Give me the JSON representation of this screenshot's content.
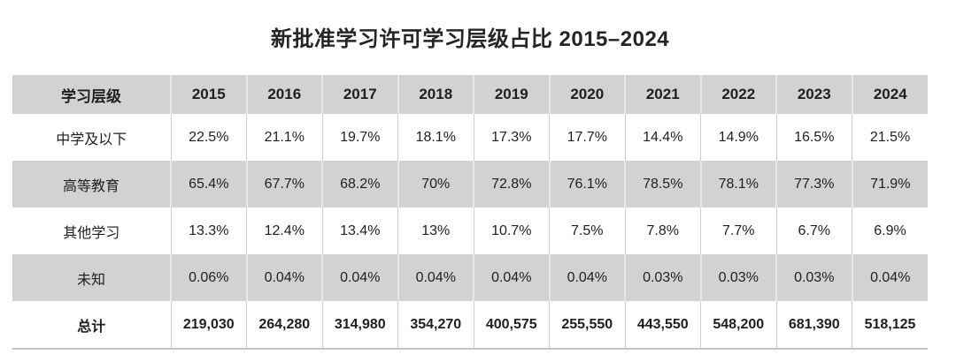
{
  "title": "新批准学习许可学习层级占比 2015–2024",
  "colors": {
    "header_bg": "#d2d2d2",
    "stripe_bg": "#d2d2d2",
    "page_bg": "#ffffff",
    "text": "#1f1f1f",
    "bottom_rule": "#c4c4c4"
  },
  "table": {
    "header": [
      "学习层级",
      "2015",
      "2016",
      "2017",
      "2018",
      "2019",
      "2020",
      "2021",
      "2022",
      "2023",
      "2024"
    ],
    "rows": [
      {
        "label": "中学及以下",
        "values": [
          "22.5%",
          "21.1%",
          "19.7%",
          "18.1%",
          "17.3%",
          "17.7%",
          "14.4%",
          "14.9%",
          "16.5%",
          "21.5%"
        ]
      },
      {
        "label": "高等教育",
        "values": [
          "65.4%",
          "67.7%",
          "68.2%",
          "70%",
          "72.8%",
          "76.1%",
          "78.5%",
          "78.1%",
          "77.3%",
          "71.9%"
        ]
      },
      {
        "label": "其他学习",
        "values": [
          "13.3%",
          "12.4%",
          "13.4%",
          "13%",
          "10.7%",
          "7.5%",
          "7.8%",
          "7.7%",
          "6.7%",
          "6.9%"
        ]
      },
      {
        "label": "未知",
        "values": [
          "0.06%",
          "0.04%",
          "0.04%",
          "0.04%",
          "0.04%",
          "0.04%",
          "0.03%",
          "0.03%",
          "0.03%",
          "0.04%"
        ]
      },
      {
        "label": "总计",
        "values": [
          "219,030",
          "264,280",
          "314,980",
          "354,270",
          "400,575",
          "255,550",
          "443,550",
          "548,200",
          "681,390",
          "518,125"
        ]
      }
    ]
  },
  "chart_data": {
    "type": "table",
    "title": "新批准学习许可学习层级占比 2015–2024",
    "columns": [
      "学习层级",
      "2015",
      "2016",
      "2017",
      "2018",
      "2019",
      "2020",
      "2021",
      "2022",
      "2023",
      "2024"
    ],
    "rows": [
      [
        "中学及以下",
        "22.5%",
        "21.1%",
        "19.7%",
        "18.1%",
        "17.3%",
        "17.7%",
        "14.4%",
        "14.9%",
        "16.5%",
        "21.5%"
      ],
      [
        "高等教育",
        "65.4%",
        "67.7%",
        "68.2%",
        "70%",
        "72.8%",
        "76.1%",
        "78.5%",
        "78.1%",
        "77.3%",
        "71.9%"
      ],
      [
        "其他学习",
        "13.3%",
        "12.4%",
        "13.4%",
        "13%",
        "10.7%",
        "7.5%",
        "7.8%",
        "7.7%",
        "6.7%",
        "6.9%"
      ],
      [
        "未知",
        "0.06%",
        "0.04%",
        "0.04%",
        "0.04%",
        "0.04%",
        "0.04%",
        "0.03%",
        "0.03%",
        "0.03%",
        "0.04%"
      ],
      [
        "总计",
        "219,030",
        "264,280",
        "314,980",
        "354,270",
        "400,575",
        "255,550",
        "443,550",
        "548,200",
        "681,390",
        "518,125"
      ]
    ],
    "series": [
      {
        "name": "中学及以下",
        "values": [
          22.5,
          21.1,
          19.7,
          18.1,
          17.3,
          17.7,
          14.4,
          14.9,
          16.5,
          21.5
        ]
      },
      {
        "name": "高等教育",
        "values": [
          65.4,
          67.7,
          68.2,
          70,
          72.8,
          76.1,
          78.5,
          78.1,
          77.3,
          71.9
        ]
      },
      {
        "name": "其他学习",
        "values": [
          13.3,
          12.4,
          13.4,
          13,
          10.7,
          7.5,
          7.8,
          7.7,
          6.7,
          6.9
        ]
      },
      {
        "name": "未知",
        "values": [
          0.06,
          0.04,
          0.04,
          0.04,
          0.04,
          0.04,
          0.03,
          0.03,
          0.03,
          0.04
        ]
      },
      {
        "name": "总计",
        "values": [
          219030,
          264280,
          314980,
          354270,
          400575,
          255550,
          443550,
          548200,
          681390,
          518125
        ]
      }
    ],
    "categories": [
      "2015",
      "2016",
      "2017",
      "2018",
      "2019",
      "2020",
      "2021",
      "2022",
      "2023",
      "2024"
    ]
  }
}
